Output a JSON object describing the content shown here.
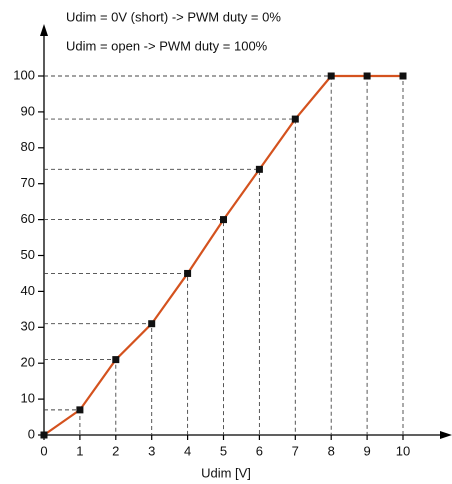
{
  "chart_data": {
    "type": "line",
    "annotations": [
      "Udim = 0V (short) -> PWM duty = 0%",
      "Udim = open -> PWM duty = 100%"
    ],
    "x_label": "Udim [V]",
    "x": [
      0,
      1,
      2,
      3,
      4,
      5,
      6,
      7,
      8,
      9,
      10
    ],
    "series": [
      {
        "name": "PWM duty",
        "color": "#d4521e",
        "marker_color": "#111111",
        "values": [
          0,
          7,
          21,
          31,
          45,
          60,
          74,
          88,
          100,
          100,
          100
        ]
      }
    ],
    "xlim": [
      0,
      10
    ],
    "xticks": [
      0,
      1,
      2,
      3,
      4,
      5,
      6,
      7,
      8,
      9,
      10
    ],
    "ylim": [
      0,
      100
    ],
    "yticks": [
      0,
      10,
      20,
      30,
      40,
      50,
      60,
      70,
      80,
      90,
      100
    ],
    "guides": true
  }
}
